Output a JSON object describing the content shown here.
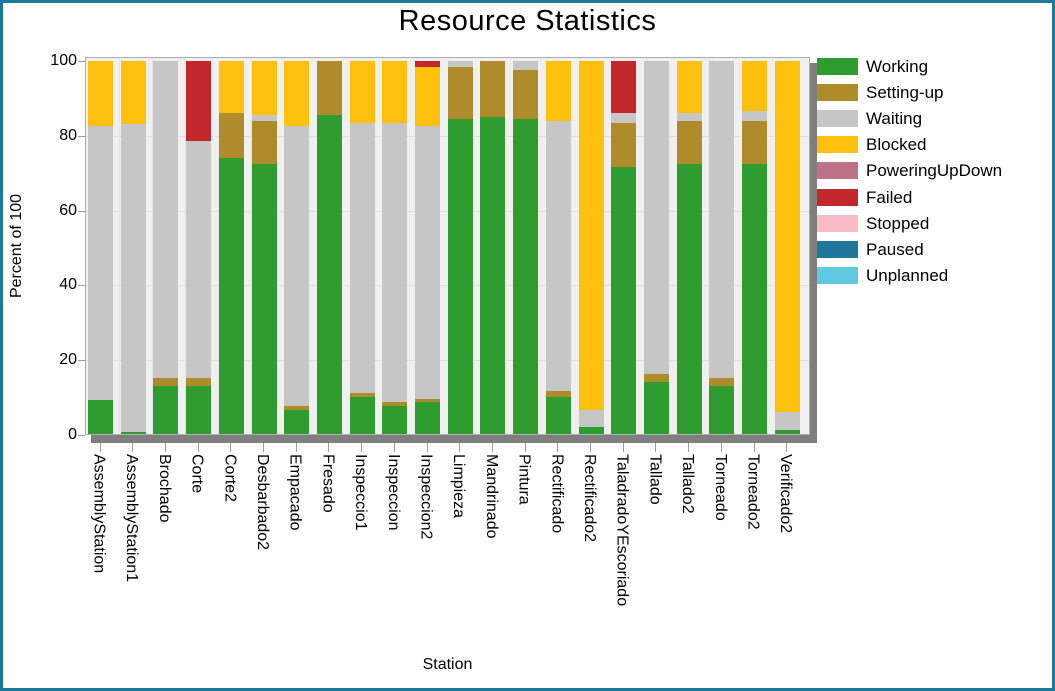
{
  "window": {
    "border_color": "#1B7A9A",
    "background": "#FFFFFF"
  },
  "chart_data": {
    "type": "bar",
    "stacked": true,
    "title": "Resource Statistics",
    "xlabel": "Station",
    "ylabel": "Percent of 100",
    "ylim": [
      0,
      100
    ],
    "yticks": [
      0,
      20,
      40,
      60,
      80,
      100
    ],
    "grid": true,
    "legend_position": "right",
    "plot_bg": "#F0F0F0",
    "shadow_color": "#7F7F7F",
    "categories": [
      "AssemblyStation",
      "AssemblyStation1",
      "Brochado",
      "Corte",
      "Corte2",
      "Desbarbado2",
      "Empacado",
      "Fresado",
      "Inspeccio1",
      "Inspeccion",
      "Inspeccion2",
      "Limpieza",
      "Mandrinado",
      "Pintura",
      "Rectificado",
      "Rectificado2",
      "TaladradoYEscoriado",
      "Tallado",
      "Tallado2",
      "Torneado",
      "Torneado2",
      "Verificado2"
    ],
    "series": [
      {
        "name": "Working",
        "color": "#2F9C30",
        "values": [
          9,
          0.5,
          13,
          13,
          74,
          72.5,
          6.5,
          85.5,
          10,
          7.5,
          8.5,
          84.5,
          85,
          84.5,
          10,
          2,
          71.5,
          14,
          72.5,
          13,
          72.5,
          1
        ]
      },
      {
        "name": "Setting-up",
        "color": "#AE8C2C",
        "values": [
          0,
          0,
          2,
          2,
          12,
          11.5,
          1,
          14.5,
          1,
          1,
          1,
          14,
          15,
          13,
          1.5,
          0,
          12,
          2,
          11.5,
          2,
          11.5,
          0
        ]
      },
      {
        "name": "Waiting",
        "color": "#C6C6C6",
        "values": [
          73.5,
          82.5,
          85,
          63.5,
          0,
          1.5,
          75,
          0,
          72.5,
          75,
          73,
          1.5,
          0,
          2.5,
          72.5,
          4.5,
          2.5,
          84,
          2,
          85,
          2.5,
          5
        ]
      },
      {
        "name": "Blocked",
        "color": "#FCC00D",
        "values": [
          17.5,
          17,
          0,
          0,
          14,
          14.5,
          17.5,
          0,
          16.5,
          16.5,
          16,
          0,
          0,
          0,
          16,
          93.5,
          0,
          0,
          14,
          0,
          13.5,
          94
        ]
      },
      {
        "name": "PoweringUpDown",
        "color": "#BE7288",
        "values": [
          0,
          0,
          0,
          0,
          0,
          0,
          0,
          0,
          0,
          0,
          0,
          0,
          0,
          0,
          0,
          0,
          0,
          0,
          0,
          0,
          0,
          0
        ]
      },
      {
        "name": "Failed",
        "color": "#C2272B",
        "values": [
          0,
          0,
          0,
          21.5,
          0,
          0,
          0,
          0,
          0,
          0,
          1.5,
          0,
          0,
          0,
          0,
          0,
          14,
          0,
          0,
          0,
          0,
          0
        ]
      },
      {
        "name": "Stopped",
        "color": "#F6BAC8",
        "values": [
          0,
          0,
          0,
          0,
          0,
          0,
          0,
          0,
          0,
          0,
          0,
          0,
          0,
          0,
          0,
          0,
          0,
          0,
          0,
          0,
          0,
          0
        ]
      },
      {
        "name": "Paused",
        "color": "#1F789B",
        "values": [
          0,
          0,
          0,
          0,
          0,
          0,
          0,
          0,
          0,
          0,
          0,
          0,
          0,
          0,
          0,
          0,
          0,
          0,
          0,
          0,
          0,
          0
        ]
      },
      {
        "name": "Unplanned",
        "color": "#5FC9DF",
        "values": [
          0,
          0,
          0,
          0,
          0,
          0,
          0,
          0,
          0,
          0,
          0,
          0,
          0,
          0,
          0,
          0,
          0,
          0,
          0,
          0,
          0,
          0
        ]
      }
    ]
  }
}
